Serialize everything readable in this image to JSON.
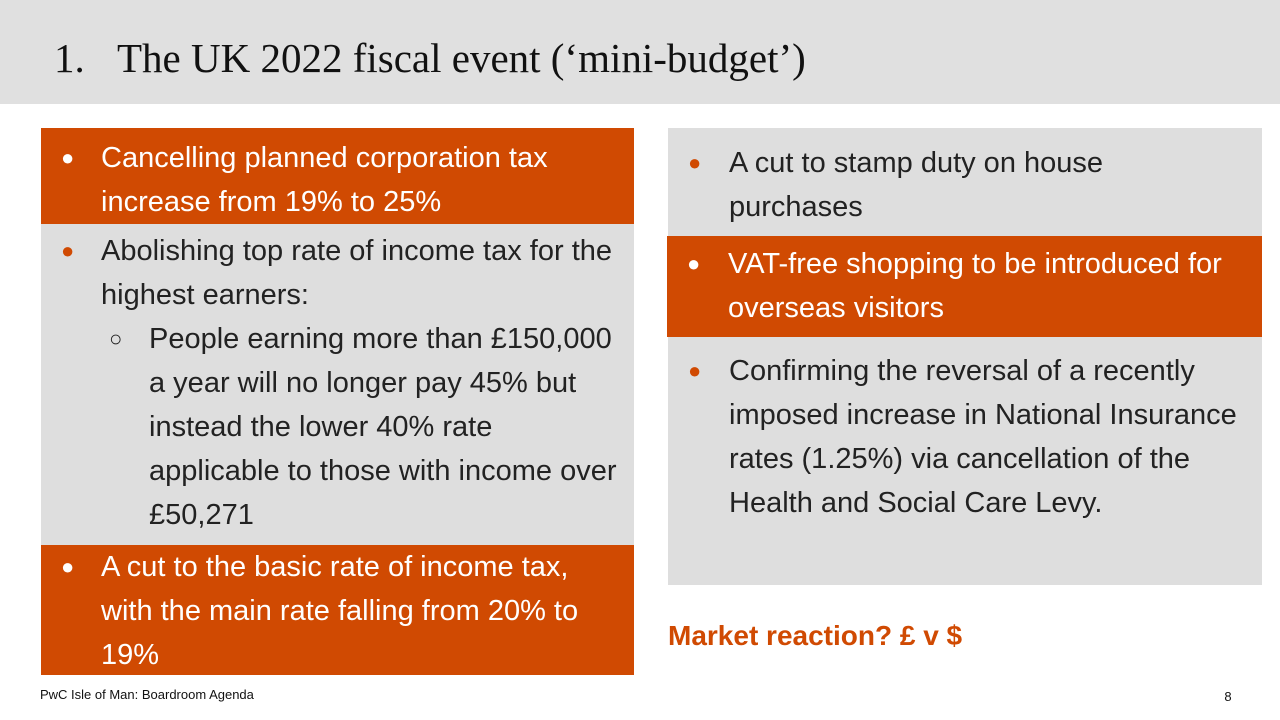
{
  "slide": {
    "title_number": "1.",
    "title": "The UK 2022 fiscal event (‘mini-budget’)"
  },
  "left_column": {
    "box1": {
      "bullet": "Cancelling planned corporation tax increase from 19% to 25%"
    },
    "box2": {
      "bullet": "Abolishing top rate of income tax for the highest earners:",
      "sub_bullet": "People earning more than £150,000 a year will no longer pay 45% but instead the lower 40% rate applicable to those with income over £50,271"
    },
    "box3": {
      "bullet": "A cut to the basic rate of income tax, with the main rate falling from 20% to 19%"
    }
  },
  "right_column": {
    "box1": {
      "bullet": "A cut to stamp duty on house purchases"
    },
    "box2": {
      "bullet": "VAT-free shopping to be introduced for overseas visitors"
    },
    "box3": {
      "bullet": "Confirming the reversal of a recently imposed increase in National Insurance rates (1.25%) via cancellation of the Health and Social Care Levy."
    }
  },
  "market_reaction": "Market reaction? £ v $",
  "footer": {
    "source": "PwC Isle of Man: Boardroom Agenda",
    "page_number": "8"
  },
  "colors": {
    "accent": "#d04a02",
    "panel_grey": "#dedede",
    "header_grey": "#e0e0e0"
  },
  "icons": {
    "bullet": "filled-circle-bullet-icon",
    "sub_bullet": "hollow-circle-bullet-icon"
  }
}
